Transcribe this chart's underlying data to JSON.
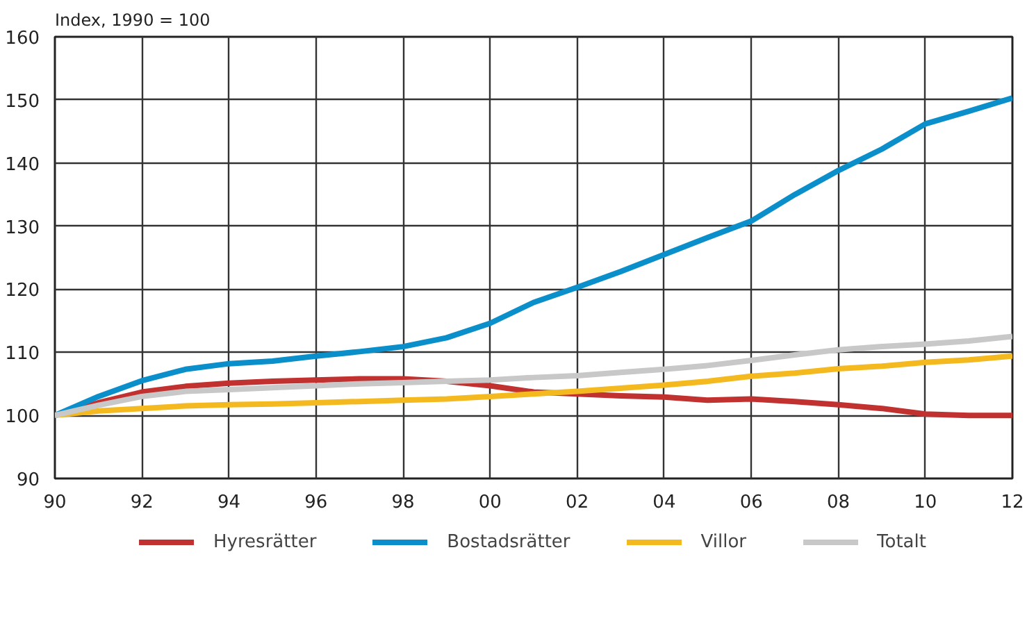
{
  "chart_data": {
    "type": "line",
    "subtitle": "Index, 1990 = 100",
    "x": [
      1990,
      1991,
      1992,
      1993,
      1994,
      1995,
      1996,
      1997,
      1998,
      1999,
      2000,
      2001,
      2002,
      2003,
      2004,
      2005,
      2006,
      2007,
      2008,
      2009,
      2010,
      2011,
      2012
    ],
    "series": [
      {
        "name": "Hyresrätter",
        "color": "#c0312f",
        "values": [
          100,
          102,
          103.7,
          104.6,
          105.1,
          105.4,
          105.6,
          105.8,
          105.8,
          105.4,
          104.7,
          103.7,
          103.4,
          103.1,
          102.9,
          102.4,
          102.6,
          102.2,
          101.7,
          101.1,
          100.2,
          100,
          100
        ]
      },
      {
        "name": "Bostadsrätter",
        "color": "#0a8fcb",
        "values": [
          100,
          103,
          105.5,
          107.3,
          108.2,
          108.6,
          109.4,
          110.1,
          110.9,
          112.3,
          114.6,
          117.9,
          120.3,
          122.8,
          125.5,
          128.2,
          130.8,
          135,
          138.8,
          142.2,
          146.2,
          148.2,
          150.3
        ]
      },
      {
        "name": "Villor",
        "color": "#f5b920",
        "values": [
          100,
          100.7,
          101.1,
          101.5,
          101.7,
          101.8,
          102,
          102.2,
          102.4,
          102.6,
          103,
          103.4,
          103.8,
          104.3,
          104.8,
          105.4,
          106.2,
          106.7,
          107.4,
          107.8,
          108.4,
          108.8,
          109.4
        ]
      },
      {
        "name": "Totalt",
        "color": "#c8c8c8",
        "values": [
          100,
          101.6,
          103,
          103.8,
          104.1,
          104.4,
          104.7,
          105,
          105.2,
          105.4,
          105.6,
          106,
          106.3,
          106.8,
          107.3,
          107.9,
          108.7,
          109.6,
          110.4,
          110.9,
          111.3,
          111.8,
          112.5
        ]
      }
    ],
    "xlim": [
      1990,
      2012
    ],
    "xticks": [
      {
        "value": 1990,
        "label": "90"
      },
      {
        "value": 1992,
        "label": "92"
      },
      {
        "value": 1994,
        "label": "94"
      },
      {
        "value": 1996,
        "label": "96"
      },
      {
        "value": 1998,
        "label": "98"
      },
      {
        "value": 2000,
        "label": "00"
      },
      {
        "value": 2002,
        "label": "02"
      },
      {
        "value": 2004,
        "label": "04"
      },
      {
        "value": 2006,
        "label": "06"
      },
      {
        "value": 2008,
        "label": "08"
      },
      {
        "value": 2010,
        "label": "10"
      },
      {
        "value": 2012,
        "label": "12"
      }
    ],
    "ylim": [
      90,
      160
    ],
    "yticks": [
      90,
      100,
      110,
      120,
      130,
      140,
      150,
      160
    ],
    "grid": true,
    "legend": "bottom",
    "line_style": "solid",
    "marker": "none"
  }
}
